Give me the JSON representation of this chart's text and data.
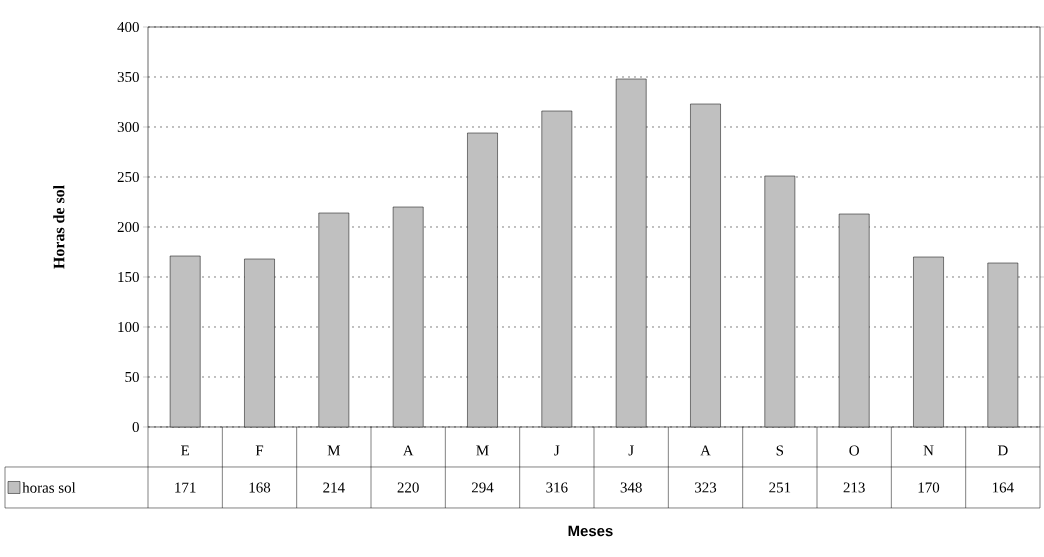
{
  "chart_data": {
    "type": "bar",
    "xlabel": "Meses",
    "ylabel": "Horas de sol",
    "categories": [
      "E",
      "F",
      "M",
      "A",
      "M",
      "J",
      "J",
      "A",
      "S",
      "O",
      "N",
      "D"
    ],
    "series": [
      {
        "name": "horas sol",
        "color": "#c0c0c0",
        "values": [
          171,
          168,
          214,
          220,
          294,
          316,
          348,
          323,
          251,
          213,
          170,
          164
        ]
      }
    ],
    "ylim": [
      0,
      400
    ],
    "yticks": [
      0,
      50,
      100,
      150,
      200,
      250,
      300,
      350,
      400
    ],
    "grid": "y",
    "legend": "bottom left",
    "data_labels": true
  }
}
